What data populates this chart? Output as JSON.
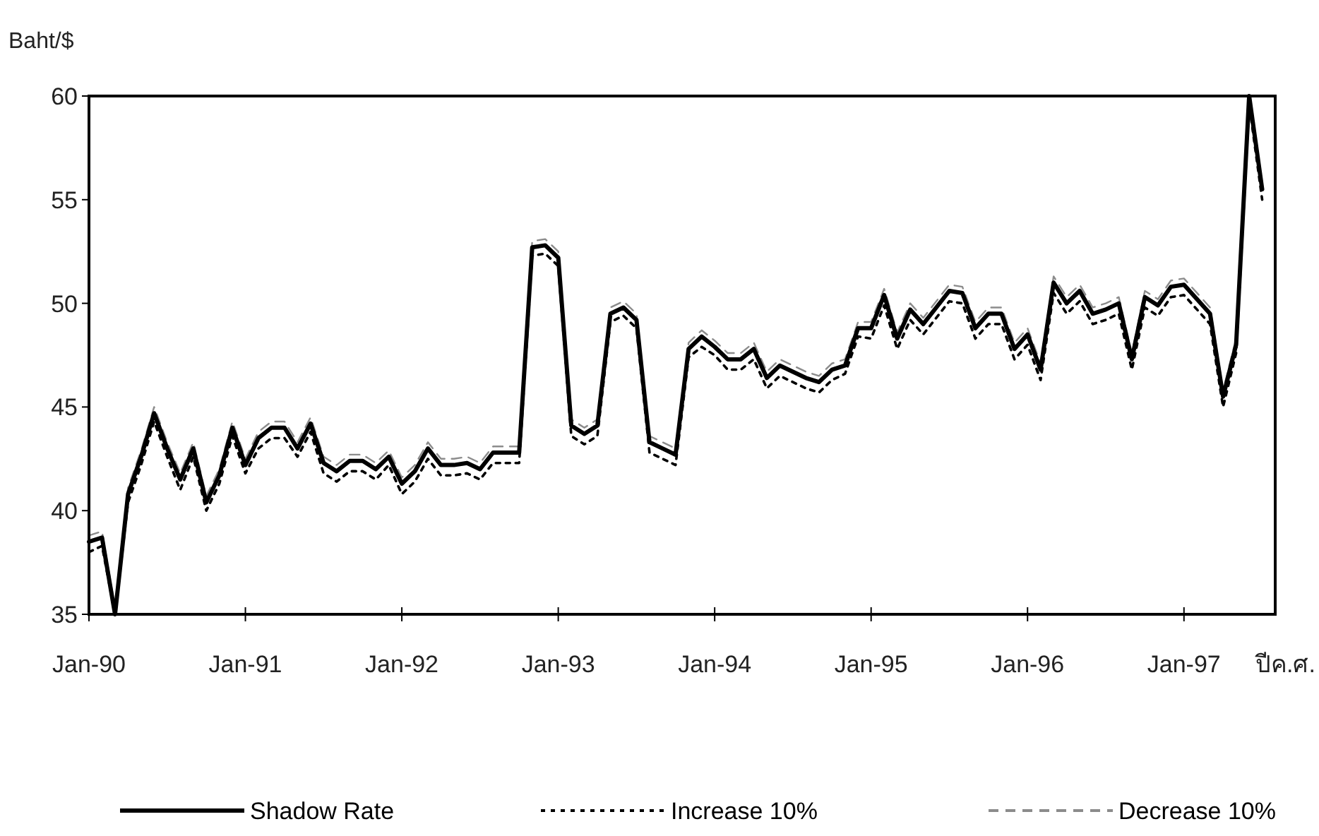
{
  "chart_data": {
    "type": "line",
    "ylabel": "Baht/$",
    "xlabel": "ปีค.ศ.",
    "x": [
      "1990-01",
      "1990-02",
      "1990-03",
      "1990-04",
      "1990-05",
      "1990-06",
      "1990-07",
      "1990-08",
      "1990-09",
      "1990-10",
      "1990-11",
      "1990-12",
      "1991-01",
      "1991-02",
      "1991-03",
      "1991-04",
      "1991-05",
      "1991-06",
      "1991-07",
      "1991-08",
      "1991-09",
      "1991-10",
      "1991-11",
      "1991-12",
      "1992-01",
      "1992-02",
      "1992-03",
      "1992-04",
      "1992-05",
      "1992-06",
      "1992-07",
      "1992-08",
      "1992-09",
      "1992-10",
      "1992-11",
      "1992-12",
      "1993-01",
      "1993-02",
      "1993-03",
      "1993-04",
      "1993-05",
      "1993-06",
      "1993-07",
      "1993-08",
      "1993-09",
      "1993-10",
      "1993-11",
      "1993-12",
      "1994-01",
      "1994-02",
      "1994-03",
      "1994-04",
      "1994-05",
      "1994-06",
      "1994-07",
      "1994-08",
      "1994-09",
      "1994-10",
      "1994-11",
      "1994-12",
      "1995-01",
      "1995-02",
      "1995-03",
      "1995-04",
      "1995-05",
      "1995-06",
      "1995-07",
      "1995-08",
      "1995-09",
      "1995-10",
      "1995-11",
      "1995-12",
      "1996-01",
      "1996-02",
      "1996-03",
      "1996-04",
      "1996-05",
      "1996-06",
      "1996-07",
      "1996-08",
      "1996-09",
      "1996-10",
      "1996-11",
      "1996-12",
      "1997-01",
      "1997-02",
      "1997-03",
      "1997-04",
      "1997-05",
      "1997-06",
      "1997-07"
    ],
    "series": [
      {
        "name": "Shadow Rate",
        "color": "#000000",
        "line_style": "solid",
        "values": [
          38.5,
          38.7,
          35.0,
          40.8,
          42.6,
          44.7,
          43.0,
          41.5,
          43.0,
          40.4,
          41.7,
          44.0,
          42.2,
          43.5,
          44.0,
          44.0,
          43.0,
          44.2,
          42.3,
          41.9,
          42.4,
          42.4,
          42.0,
          42.6,
          41.3,
          41.9,
          43.0,
          42.2,
          42.2,
          42.3,
          42.0,
          42.8,
          42.8,
          42.8,
          52.7,
          52.8,
          52.2,
          44.1,
          43.7,
          44.1,
          49.5,
          49.8,
          49.2,
          43.3,
          43.0,
          42.7,
          47.8,
          48.4,
          47.9,
          47.3,
          47.3,
          47.8,
          46.4,
          47.0,
          46.7,
          46.4,
          46.2,
          46.8,
          47.0,
          48.8,
          48.8,
          50.4,
          48.3,
          49.7,
          49.0,
          49.8,
          50.6,
          50.5,
          48.8,
          49.5,
          49.5,
          47.8,
          48.5,
          46.8,
          51.0,
          50.0,
          50.6,
          49.5,
          49.7,
          50.0,
          47.3,
          50.3,
          49.9,
          50.8,
          50.9,
          50.2,
          49.5,
          45.5,
          48.0,
          60.0,
          55.5
        ]
      },
      {
        "name": "Increase 10%",
        "color": "#000000",
        "line_style": "dotted",
        "values": [
          38.0,
          38.3,
          35.0,
          40.4,
          42.2,
          44.3,
          42.6,
          41.0,
          42.6,
          40.0,
          41.3,
          43.6,
          41.8,
          43.0,
          43.5,
          43.5,
          42.6,
          43.8,
          41.8,
          41.4,
          41.9,
          41.9,
          41.5,
          42.2,
          40.8,
          41.4,
          42.5,
          41.7,
          41.7,
          41.8,
          41.5,
          42.3,
          42.3,
          42.3,
          52.3,
          52.4,
          51.8,
          43.6,
          43.2,
          43.6,
          49.1,
          49.4,
          48.8,
          42.8,
          42.5,
          42.2,
          47.4,
          47.9,
          47.5,
          46.8,
          46.8,
          47.3,
          45.9,
          46.5,
          46.2,
          45.9,
          45.7,
          46.3,
          46.6,
          48.4,
          48.3,
          49.9,
          47.8,
          49.2,
          48.5,
          49.3,
          50.1,
          50.0,
          48.3,
          49.0,
          49.0,
          47.3,
          48.0,
          46.3,
          50.5,
          49.5,
          50.1,
          49.0,
          49.2,
          49.5,
          46.8,
          49.8,
          49.4,
          50.3,
          50.4,
          49.7,
          49.0,
          45.0,
          47.6,
          59.6,
          55.0
        ]
      },
      {
        "name": "Decrease 10%",
        "color": "#8c8c8c",
        "line_style": "dashed",
        "values": [
          38.8,
          39.0,
          35.3,
          41.1,
          42.9,
          45.0,
          43.3,
          41.8,
          43.3,
          40.7,
          42.0,
          44.3,
          42.5,
          43.8,
          44.3,
          44.3,
          43.3,
          44.5,
          42.6,
          42.2,
          42.7,
          42.7,
          42.3,
          42.9,
          41.6,
          42.2,
          43.3,
          42.5,
          42.5,
          42.6,
          42.3,
          43.1,
          43.1,
          43.1,
          53.0,
          53.1,
          52.5,
          44.4,
          44.0,
          44.4,
          49.8,
          50.1,
          49.5,
          43.6,
          43.3,
          43.0,
          48.1,
          48.7,
          48.2,
          47.6,
          47.6,
          48.1,
          46.7,
          47.3,
          47.0,
          46.7,
          46.5,
          47.1,
          47.3,
          49.1,
          49.1,
          50.7,
          48.6,
          50.0,
          49.3,
          50.1,
          50.9,
          50.8,
          49.1,
          49.8,
          49.8,
          48.1,
          48.8,
          47.1,
          51.3,
          50.3,
          50.9,
          49.8,
          50.0,
          50.3,
          47.6,
          50.6,
          50.2,
          51.1,
          51.2,
          50.5,
          49.8,
          45.8,
          48.3,
          60.0,
          55.8
        ]
      }
    ],
    "xlim": [
      "1990-01",
      "1997-08"
    ],
    "xticks": [
      {
        "value": "1990-01",
        "label": "Jan-90"
      },
      {
        "value": "1991-01",
        "label": "Jan-91"
      },
      {
        "value": "1992-01",
        "label": "Jan-92"
      },
      {
        "value": "1993-01",
        "label": "Jan-93"
      },
      {
        "value": "1994-01",
        "label": "Jan-94"
      },
      {
        "value": "1995-01",
        "label": "Jan-95"
      },
      {
        "value": "1996-01",
        "label": "Jan-96"
      },
      {
        "value": "1997-01",
        "label": "Jan-97"
      }
    ],
    "ylim": [
      35,
      60
    ],
    "yticks": [
      35,
      40,
      45,
      50,
      55,
      60
    ],
    "grid": false,
    "legend": "bottom",
    "marker": "none"
  }
}
